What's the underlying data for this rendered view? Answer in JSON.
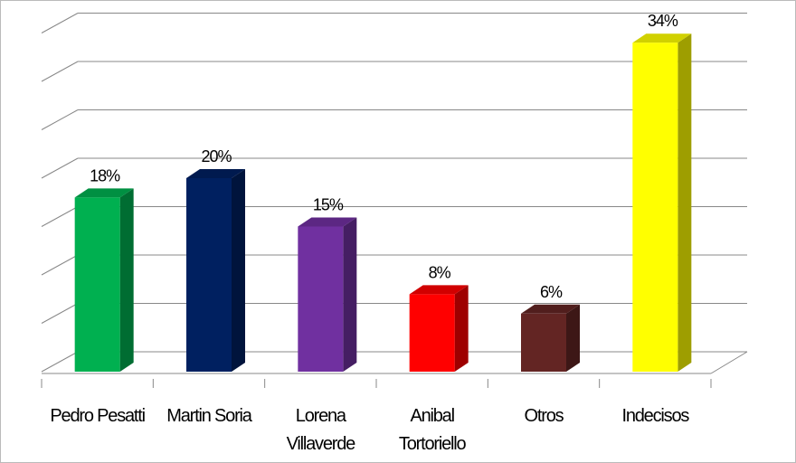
{
  "chart_data": {
    "type": "bar3d",
    "categories": [
      "Pedro Pesatti",
      "Martin Soria",
      "Lorena Villaverde",
      "Anibal Tortoriello",
      "Otros",
      "Indecisos"
    ],
    "values": [
      18,
      20,
      15,
      8,
      6,
      34
    ],
    "value_labels": [
      "18%",
      "20%",
      "15%",
      "8%",
      "6%",
      "34%"
    ],
    "colors": [
      "#00b050",
      "#002060",
      "#7030a0",
      "#ff0000",
      "#632523",
      "#ffff00"
    ],
    "ylim": [
      0,
      35
    ],
    "yticks": [
      0,
      5,
      10,
      15,
      20,
      25,
      30,
      35
    ],
    "grid": true
  }
}
